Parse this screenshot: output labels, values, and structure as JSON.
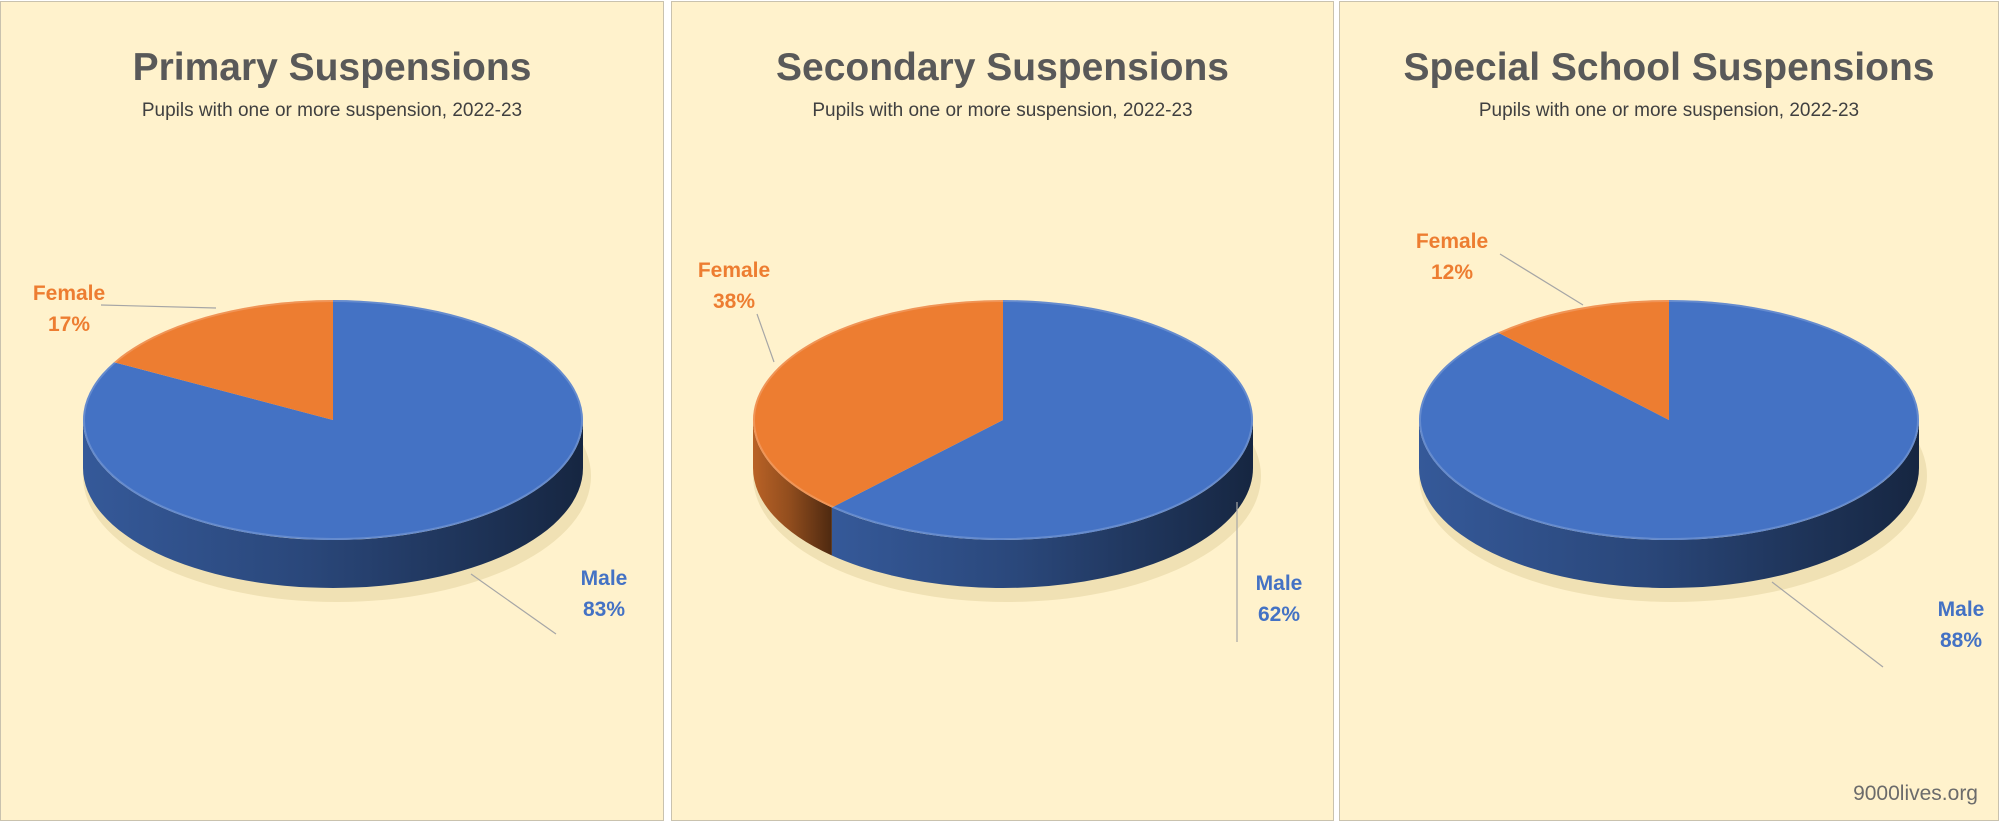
{
  "chart_data": [
    {
      "type": "pie",
      "title": "Primary Suspensions",
      "subtitle": "Pupils with one or more suspension, 2022-23",
      "slices": [
        {
          "name": "Female",
          "value": 17,
          "label": "17%",
          "color": "#ed7d31"
        },
        {
          "name": "Male",
          "value": 83,
          "label": "83%",
          "color": "#4472c4"
        }
      ]
    },
    {
      "type": "pie",
      "title": "Secondary Suspensions",
      "subtitle": "Pupils with one or more suspension, 2022-23",
      "slices": [
        {
          "name": "Female",
          "value": 38,
          "label": "38%",
          "color": "#ed7d31"
        },
        {
          "name": "Male",
          "value": 62,
          "label": "62%",
          "color": "#4472c4"
        }
      ]
    },
    {
      "type": "pie",
      "title": "Special School Suspensions",
      "subtitle": "Pupils with one or more suspension, 2022-23",
      "slices": [
        {
          "name": "Female",
          "value": 12,
          "label": "12%",
          "color": "#ed7d31"
        },
        {
          "name": "Male",
          "value": 88,
          "label": "88%",
          "color": "#4472c4"
        }
      ]
    }
  ],
  "watermark": "9000lives.org"
}
